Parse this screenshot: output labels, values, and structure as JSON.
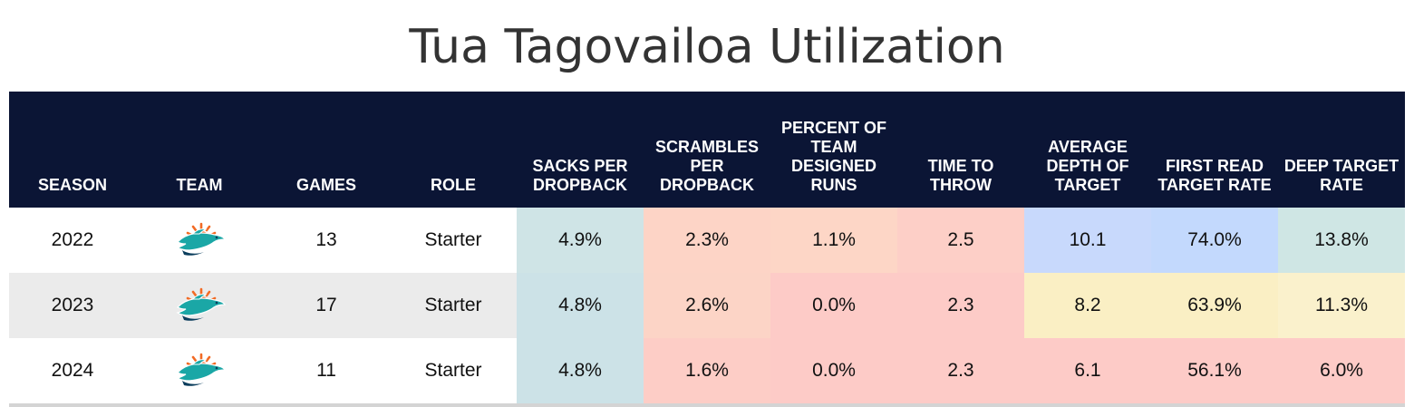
{
  "title": "Tua Tagovailoa Utilization",
  "chart_data": {
    "type": "table",
    "title": "Tua Tagovailoa Utilization",
    "columns": [
      "SEASON",
      "TEAM",
      "GAMES",
      "ROLE",
      "SACKS PER DROPBACK",
      "SCRAMBLES PER DROPBACK",
      "PERCENT OF TEAM DESIGNED RUNS",
      "TIME TO THROW",
      "AVERAGE DEPTH OF TARGET",
      "FIRST READ TARGET RATE",
      "DEEP TARGET RATE"
    ],
    "rows": [
      {
        "season": "2022",
        "team_icon": "miami-dolphins-logo-icon",
        "games": "13",
        "role": "Starter",
        "stats": [
          "4.9%",
          "2.3%",
          "1.1%",
          "2.5",
          "10.1",
          "74.0%",
          "13.8%"
        ],
        "colors": [
          "#cfe4e6",
          "#fdd4c6",
          "#fdd6c6",
          "#fdcfc7",
          "#c8d9fc",
          "#c3d9fd",
          "#cfe6e4"
        ]
      },
      {
        "season": "2023",
        "team_icon": "miami-dolphins-logo-icon",
        "games": "17",
        "role": "Starter",
        "stats": [
          "4.8%",
          "2.6%",
          "0.0%",
          "2.3",
          "8.2",
          "63.9%",
          "11.3%"
        ],
        "colors": [
          "#cce2e7",
          "#fcd4c6",
          "#fdcbc7",
          "#fdcbc7",
          "#faefc4",
          "#faefc4",
          "#faf1cc"
        ]
      },
      {
        "season": "2024",
        "team_icon": "miami-dolphins-logo-icon",
        "games": "11",
        "role": "Starter",
        "stats": [
          "4.8%",
          "1.6%",
          "0.0%",
          "2.3",
          "6.1",
          "56.1%",
          "6.0%"
        ],
        "colors": [
          "#cce2e7",
          "#fdcdc6",
          "#fdcbc7",
          "#fdcbc7",
          "#fdcbc7",
          "#fdcbc7",
          "#fdcbc7"
        ]
      }
    ]
  },
  "logo_colors": {
    "aqua": "#1aa7a6",
    "orange": "#f26a24",
    "navy": "#0b3d5c"
  }
}
